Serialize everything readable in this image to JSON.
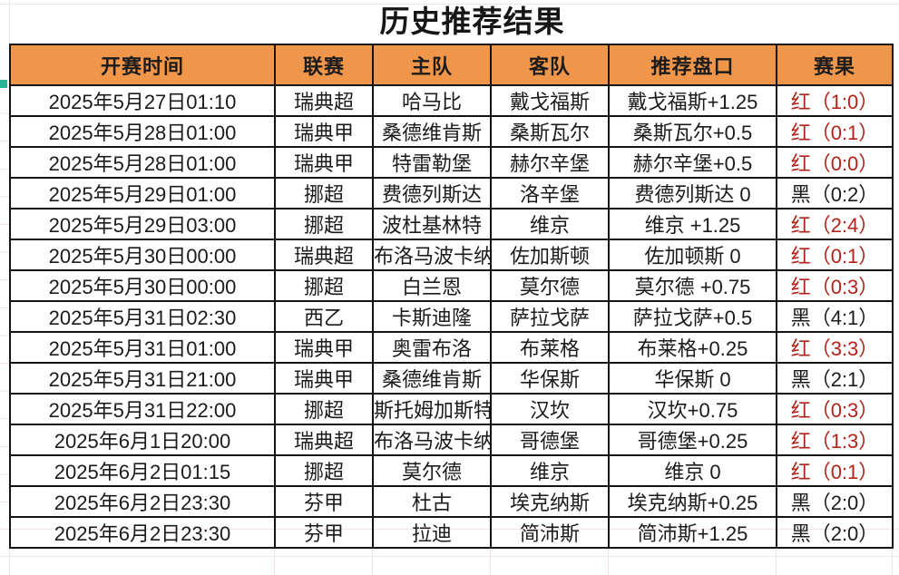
{
  "title": "历史推荐结果",
  "colors": {
    "header_bg": "#F0964A",
    "border": "#141414",
    "result_win_red": "#B22318",
    "result_lose_black": "#1B1B1B",
    "gridline": "#F1E3E6",
    "edge_marker": "#2BB394"
  },
  "table": {
    "columns": [
      {
        "key": "time",
        "label": "开赛时间"
      },
      {
        "key": "league",
        "label": "联赛"
      },
      {
        "key": "home",
        "label": "主队"
      },
      {
        "key": "away",
        "label": "客队"
      },
      {
        "key": "handicap",
        "label": "推荐盘口"
      },
      {
        "key": "result",
        "label": "赛果"
      }
    ],
    "rows": [
      {
        "time": "2025年5月27日01:10",
        "league": "瑞典超",
        "home": "哈马比",
        "away": "戴戈福斯",
        "handicap": "戴戈福斯+1.25",
        "result": "红（1:0）",
        "result_color": "red"
      },
      {
        "time": "2025年5月28日01:00",
        "league": "瑞典甲",
        "home": "桑德维肯斯",
        "away": "桑斯瓦尔",
        "handicap": "桑斯瓦尔+0.5",
        "result": "红（0:1）",
        "result_color": "red"
      },
      {
        "time": "2025年5月28日01:00",
        "league": "瑞典甲",
        "home": "特雷勒堡",
        "away": "赫尔辛堡",
        "handicap": "赫尔辛堡+0.5",
        "result": "红（0:0）",
        "result_color": "red"
      },
      {
        "time": "2025年5月29日01:00",
        "league": "挪超",
        "home": "费德列斯达",
        "away": "洛辛堡",
        "handicap": "费德列斯达 0",
        "result": "黑（0:2）",
        "result_color": "black"
      },
      {
        "time": "2025年5月29日03:00",
        "league": "挪超",
        "home": "波杜基林特",
        "away": "维京",
        "handicap": "维京 +1.25",
        "result": "红（2:4）",
        "result_color": "red"
      },
      {
        "time": "2025年5月30日00:00",
        "league": "瑞典超",
        "home": "布洛马波卡纳",
        "away": "佐加斯顿",
        "handicap": "佐加顿斯 0",
        "result": "红（0:1）",
        "result_color": "red"
      },
      {
        "time": "2025年5月30日00:00",
        "league": "挪超",
        "home": "白兰恩",
        "away": "莫尔德",
        "handicap": "莫尔德 +0.75",
        "result": "红（0:3）",
        "result_color": "red"
      },
      {
        "time": "2025年5月31日02:30",
        "league": "西乙",
        "home": "卡斯迪隆",
        "away": "萨拉戈萨",
        "handicap": "萨拉戈萨+0.5",
        "result": "黑（4:1）",
        "result_color": "black"
      },
      {
        "time": "2025年5月31日01:00",
        "league": "瑞典甲",
        "home": "奥雷布洛",
        "away": "布莱格",
        "handicap": "布莱格+0.25",
        "result": "红（3:3）",
        "result_color": "red"
      },
      {
        "time": "2025年5月31日21:00",
        "league": "瑞典甲",
        "home": "桑德维肯斯",
        "away": "华保斯",
        "handicap": "华保斯 0",
        "result": "黑（2:1）",
        "result_color": "black"
      },
      {
        "time": "2025年5月31日22:00",
        "league": "挪超",
        "home": "斯托姆加斯特",
        "away": "汉坎",
        "handicap": "汉坎+0.75",
        "result": "红（0:3）",
        "result_color": "red"
      },
      {
        "time": "2025年6月1日20:00",
        "league": "瑞典超",
        "home": "布洛马波卡纳",
        "away": "哥德堡",
        "handicap": "哥德堡+0.25",
        "result": "红（1:3）",
        "result_color": "red"
      },
      {
        "time": "2025年6月2日01:15",
        "league": "挪超",
        "home": "莫尔德",
        "away": "维京",
        "handicap": "维京 0",
        "result": "红（0:1）",
        "result_color": "red"
      },
      {
        "time": "2025年6月2日23:30",
        "league": "芬甲",
        "home": "杜古",
        "away": "埃克纳斯",
        "handicap": "埃克纳斯+0.25",
        "result": "黑（2:0）",
        "result_color": "black"
      },
      {
        "time": "2025年6月2日23:30",
        "league": "芬甲",
        "home": "拉迪",
        "away": "简沛斯",
        "handicap": "简沛斯+1.25",
        "result": "黑（2:0）",
        "result_color": "black"
      }
    ]
  }
}
